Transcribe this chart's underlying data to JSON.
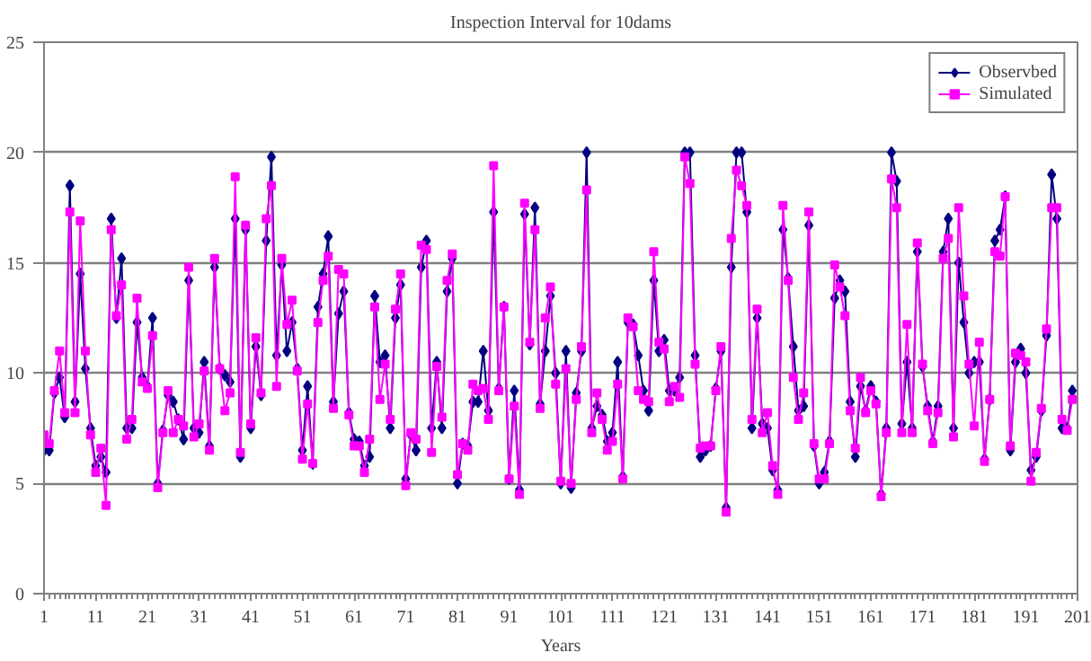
{
  "chart_data": {
    "type": "line",
    "title": "Inspection Interval for 10dams",
    "xlabel": "Years",
    "x": [
      1,
      2,
      3,
      4,
      5,
      6,
      7,
      8,
      9,
      10,
      11,
      12,
      13,
      14,
      15,
      16,
      17,
      18,
      19,
      20,
      21,
      22,
      23,
      24,
      25,
      26,
      27,
      28,
      29,
      30,
      31,
      32,
      33,
      34,
      35,
      36,
      37,
      38,
      39,
      40,
      41,
      42,
      43,
      44,
      45,
      46,
      47,
      48,
      49,
      50,
      51,
      52,
      53,
      54,
      55,
      56,
      57,
      58,
      59,
      60,
      61,
      62,
      63,
      64,
      65,
      66,
      67,
      68,
      69,
      70,
      71,
      72,
      73,
      74,
      75,
      76,
      77,
      78,
      79,
      80,
      81,
      82,
      83,
      84,
      85,
      86,
      87,
      88,
      89,
      90,
      91,
      92,
      93,
      94,
      95,
      96,
      97,
      98,
      99,
      100,
      101,
      102,
      103,
      104,
      105,
      106,
      107,
      108,
      109,
      110,
      111,
      112,
      113,
      114,
      115,
      116,
      117,
      118,
      119,
      120,
      121,
      122,
      123,
      124,
      125,
      126,
      127,
      128,
      129,
      130,
      131,
      132,
      133,
      134,
      135,
      136,
      137,
      138,
      139,
      140,
      141,
      142,
      143,
      144,
      145,
      146,
      147,
      148,
      149,
      150,
      151,
      152,
      153,
      154,
      155,
      156,
      157,
      158,
      159,
      160,
      161,
      162,
      163,
      164,
      165,
      166,
      167,
      168,
      169,
      170,
      171,
      172,
      173,
      174,
      175,
      176,
      177,
      178,
      179,
      180,
      181,
      182,
      183,
      184,
      185,
      186,
      187,
      188,
      189,
      190,
      191,
      192,
      193,
      194,
      195,
      196,
      197,
      198,
      199,
      200
    ],
    "series": [
      {
        "name": "Observbed",
        "color": "#000080",
        "marker": "diamond",
        "values": [
          6.5,
          6.5,
          9.1,
          9.8,
          8.0,
          18.5,
          8.7,
          14.5,
          10.2,
          7.5,
          5.8,
          6.2,
          5.5,
          17.0,
          12.5,
          15.2,
          7.5,
          7.5,
          12.3,
          9.8,
          9.4,
          12.5,
          5.0,
          7.4,
          9.0,
          8.7,
          7.9,
          7.0,
          14.2,
          7.5,
          7.3,
          10.5,
          6.7,
          14.8,
          10.2,
          9.9,
          9.6,
          17.0,
          6.2,
          16.5,
          7.5,
          11.2,
          9.0,
          16.0,
          19.8,
          10.8,
          14.9,
          11.0,
          12.3,
          10.2,
          6.5,
          9.4,
          5.9,
          13.0,
          14.5,
          16.2,
          8.7,
          12.7,
          13.7,
          8.2,
          7.0,
          6.9,
          5.8,
          6.2,
          13.5,
          10.5,
          10.8,
          7.5,
          12.5,
          14.0,
          5.2,
          7.2,
          6.5,
          14.8,
          16.0,
          7.5,
          10.5,
          7.5,
          13.7,
          15.2,
          5.0,
          6.8,
          6.7,
          8.7,
          8.7,
          11.0,
          8.3,
          17.3,
          9.3,
          13.0,
          5.2,
          9.2,
          4.7,
          17.2,
          11.3,
          17.5,
          8.6,
          11.0,
          13.5,
          10.0,
          5.0,
          11.0,
          4.8,
          9.1,
          11.0,
          20.0,
          7.5,
          8.5,
          8.1,
          6.9,
          7.3,
          10.5,
          5.3,
          12.3,
          12.2,
          10.8,
          9.2,
          8.3,
          14.2,
          11.0,
          11.5,
          9.2,
          9.2,
          9.8,
          20.0,
          20.0,
          10.8,
          6.2,
          6.5,
          6.7,
          9.3,
          11.0,
          3.9,
          14.8,
          20.0,
          20.0,
          17.3,
          7.5,
          12.5,
          7.7,
          7.5,
          5.6,
          4.7,
          16.5,
          14.3,
          11.2,
          8.3,
          8.5,
          16.7,
          6.7,
          5.0,
          5.5,
          6.9,
          13.4,
          14.2,
          13.7,
          8.7,
          6.2,
          9.4,
          8.3,
          9.4,
          8.7,
          4.5,
          7.5,
          20.0,
          18.7,
          7.7,
          10.5,
          7.5,
          15.5,
          10.3,
          8.5,
          6.9,
          8.5,
          15.5,
          17.0,
          7.5,
          15.0,
          12.3,
          10.0,
          10.5,
          10.5,
          6.1,
          8.8,
          16.0,
          16.5,
          18.0,
          6.5,
          10.5,
          11.1,
          10.0,
          5.6,
          6.2,
          8.3,
          11.7,
          19.0,
          17.0,
          7.5,
          7.5,
          9.2
        ]
      },
      {
        "name": "Simulated",
        "color": "#ff00ff",
        "marker": "square",
        "values": [
          7.2,
          6.8,
          9.2,
          11.0,
          8.2,
          17.3,
          8.2,
          16.9,
          11.0,
          7.2,
          5.5,
          6.6,
          4.0,
          16.5,
          12.6,
          14.0,
          7.0,
          7.9,
          13.4,
          9.6,
          9.3,
          11.7,
          4.8,
          7.3,
          9.2,
          7.3,
          7.9,
          7.6,
          14.8,
          7.1,
          7.7,
          10.1,
          6.5,
          15.2,
          10.2,
          8.3,
          9.1,
          18.9,
          6.4,
          16.7,
          7.7,
          11.6,
          9.1,
          17.0,
          18.5,
          9.4,
          15.2,
          12.2,
          13.3,
          10.1,
          6.1,
          8.6,
          5.9,
          12.3,
          14.2,
          15.3,
          8.4,
          14.7,
          14.5,
          8.1,
          6.7,
          6.7,
          5.5,
          7.0,
          13.0,
          8.8,
          10.4,
          7.9,
          12.9,
          14.5,
          4.9,
          7.3,
          7.0,
          15.8,
          15.6,
          6.4,
          10.3,
          8.0,
          14.2,
          15.4,
          5.4,
          6.8,
          6.5,
          9.5,
          9.2,
          9.3,
          7.9,
          19.4,
          9.2,
          13.0,
          5.2,
          8.5,
          4.5,
          17.7,
          11.4,
          16.5,
          8.4,
          12.5,
          13.9,
          9.5,
          5.1,
          10.2,
          5.0,
          8.8,
          11.2,
          18.3,
          7.3,
          9.1,
          7.9,
          6.5,
          6.9,
          9.5,
          5.2,
          12.5,
          12.1,
          9.2,
          8.8,
          8.7,
          15.5,
          11.4,
          11.1,
          8.7,
          9.4,
          8.9,
          19.8,
          18.6,
          10.4,
          6.6,
          6.7,
          6.7,
          9.2,
          11.2,
          3.7,
          16.1,
          19.2,
          18.5,
          17.6,
          7.9,
          12.9,
          7.3,
          8.2,
          5.8,
          4.5,
          17.6,
          14.2,
          9.8,
          7.9,
          9.1,
          17.3,
          6.8,
          5.2,
          5.2,
          6.8,
          14.9,
          13.9,
          12.6,
          8.3,
          6.6,
          9.8,
          8.2,
          9.2,
          8.6,
          4.4,
          7.3,
          18.8,
          17.5,
          7.3,
          12.2,
          7.3,
          15.9,
          10.4,
          8.3,
          6.8,
          8.2,
          15.2,
          16.1,
          7.1,
          17.5,
          13.5,
          10.4,
          7.6,
          11.4,
          6.0,
          8.8,
          15.5,
          15.3,
          18.0,
          6.7,
          10.9,
          10.8,
          10.5,
          5.1,
          6.4,
          8.4,
          12.0,
          17.5,
          17.5,
          7.9,
          7.4,
          8.8
        ]
      }
    ],
    "xlim": [
      1,
      201
    ],
    "xticks": [
      1,
      11,
      21,
      31,
      41,
      51,
      61,
      71,
      81,
      91,
      101,
      111,
      121,
      131,
      141,
      151,
      161,
      171,
      181,
      191,
      201
    ],
    "ylim": [
      0,
      25
    ],
    "yticks": [
      0,
      5,
      10,
      15,
      20,
      25
    ],
    "grid": "y",
    "legend": "top right",
    "line_style": "solid"
  }
}
